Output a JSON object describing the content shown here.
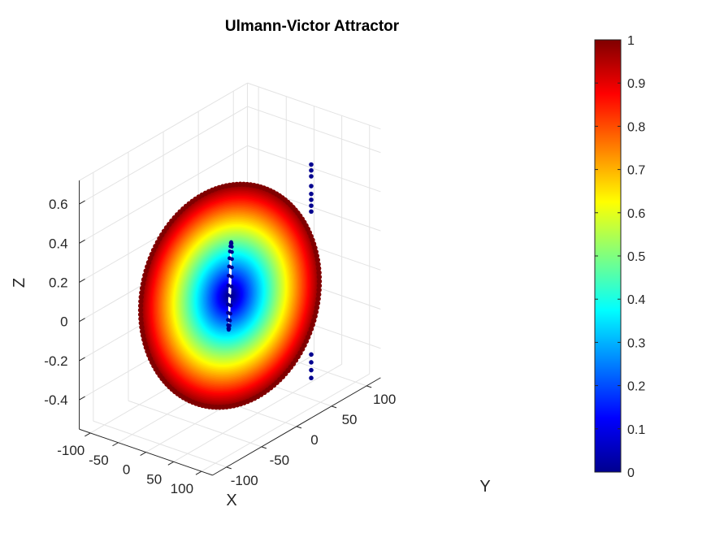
{
  "chart_data": {
    "type": "scatter",
    "subtype": "3d-scatter",
    "title": "Ulmann-Victor Attractor",
    "xlabel": "X",
    "ylabel": "Y",
    "zlabel": "Z",
    "xlim": [
      -120,
      120
    ],
    "ylim": [
      -120,
      120
    ],
    "zlim": [
      -0.55,
      0.72
    ],
    "xticks": [
      -100,
      -50,
      0,
      50,
      100
    ],
    "yticks": [
      -100,
      -50,
      0,
      50,
      100
    ],
    "zticks": [
      -0.4,
      -0.2,
      0,
      0.2,
      0.4,
      0.6
    ],
    "grid": true,
    "colormap": "jet",
    "colorbar": {
      "ticks": [
        0,
        0.1,
        0.2,
        0.3,
        0.4,
        0.5,
        0.6,
        0.7,
        0.8,
        0.9,
        1
      ],
      "range": [
        0,
        1
      ]
    },
    "series": [
      {
        "shape": "disk",
        "r_max": 100,
        "color_by": "normalized radius",
        "tilt_z_per_x": -0.003,
        "tilt_z_per_y": 0.002
      },
      {
        "shape": "spine",
        "points": [
          [
            0,
            0,
            0.67
          ],
          [
            0,
            0,
            0.64
          ],
          [
            0,
            0,
            0.61
          ],
          [
            0,
            0,
            0.56
          ],
          [
            0,
            0,
            0.52
          ],
          [
            0,
            0,
            0.49
          ],
          [
            0,
            0,
            0.46
          ],
          [
            0,
            0,
            0.43
          ],
          [
            0,
            0,
            -0.3
          ],
          [
            0,
            0,
            -0.34
          ],
          [
            0,
            0,
            -0.38
          ],
          [
            0,
            0,
            -0.42
          ]
        ]
      }
    ]
  }
}
